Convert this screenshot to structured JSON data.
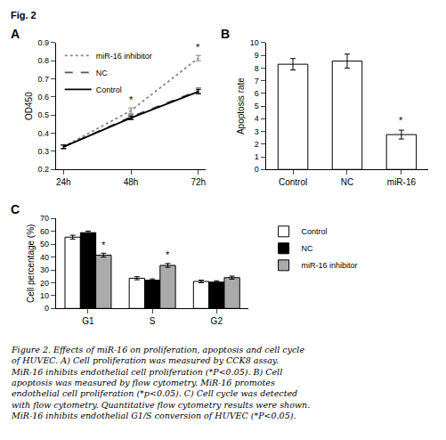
{
  "chart_data": [
    {
      "type": "line",
      "title": "A",
      "y_label": "OD450",
      "categories": [
        "24h",
        "48h",
        "72h"
      ],
      "series": [
        {
          "name": "miR-16 inhibitor",
          "color": "#888888",
          "line_style": "dotted",
          "values": [
            0.325,
            0.525,
            0.815
          ],
          "yerr": [
            0.01,
            0.015,
            0.015
          ]
        },
        {
          "name": "NC",
          "color": "#555555",
          "line_style": "dashed",
          "values": [
            0.325,
            0.49,
            0.635
          ],
          "yerr": [
            0.01,
            0.012,
            0.015
          ]
        },
        {
          "name": "Control",
          "color": "#000000",
          "line_style": "solid",
          "values": [
            0.325,
            0.485,
            0.63
          ],
          "yerr": [
            0.01,
            0.01,
            0.012
          ]
        }
      ],
      "ylim": [
        0.2,
        0.9
      ],
      "yticks": [
        0.2,
        0.3,
        0.4,
        0.5,
        0.6,
        0.7,
        0.8,
        0.9
      ],
      "grid": false,
      "legend": "upper left",
      "annotations": [
        {
          "text": "Fig. 2"
        },
        {
          "category": "48h",
          "y": 0.548,
          "text": "*"
        },
        {
          "category": "72h",
          "y": 0.838,
          "text": "*"
        },
        {
          "text": "Figure 2. Effects of miR-16 on proliferation, apoptosis and cell cycle\nof HUVEC. A) Cell proliferation was measured by CCK8 assay.\nMiR-16 inhibits endothelial cell proliferation (*P<0.05). B) Cell\napoptosis was measured by flow cytometry. MiR-16 promotes\nendothelial cell proliferation (*p<0.05). C) Cell cycle was detected\nwith flow cytometry. Quantitative flow cytometry results were shown.\nMiR-16 inhibits endothelial G1/S conversion of HUVEC (*P<0.05)."
        }
      ]
    },
    {
      "type": "bar",
      "title": "B",
      "y_label": "Apoptosis rate",
      "categories": [
        "Control",
        "NC",
        "miR-16"
      ],
      "values": [
        8.3,
        8.55,
        2.75
      ],
      "yerr": [
        0.45,
        0.55,
        0.35
      ],
      "color": "#ffffff",
      "ylim": [
        0,
        10
      ],
      "yticks": [
        0,
        1,
        2,
        3,
        4,
        5,
        6,
        7,
        8,
        9,
        10
      ],
      "grid": false,
      "annotations": [
        {
          "category": "miR-16",
          "y": 3.35,
          "text": "*"
        }
      ]
    },
    {
      "type": "bar",
      "title": "C",
      "y_label": "Cell percentage (%)",
      "categories": [
        "G1",
        "S",
        "G2"
      ],
      "series": [
        {
          "name": "Control",
          "color": "#ffffff",
          "values": [
            55.5,
            23.5,
            21.0
          ],
          "yerr": [
            1.5,
            1.2,
            1.0
          ]
        },
        {
          "name": "NC",
          "color": "#000000",
          "values": [
            59.0,
            22.0,
            20.5
          ],
          "yerr": [
            1.2,
            1.0,
            1.0
          ]
        },
        {
          "name": "miR-16 inhibitor",
          "color": "#aaaaaa",
          "values": [
            41.5,
            33.5,
            24.0
          ],
          "yerr": [
            1.5,
            1.5,
            1.2
          ]
        }
      ],
      "ylim": [
        0,
        70
      ],
      "yticks": [
        0,
        10,
        20,
        30,
        40,
        50,
        60,
        70
      ],
      "grid": false,
      "legend": "right",
      "annotations": [
        {
          "category": "G1",
          "series": "miR-16 inhibitor",
          "y": 44.2,
          "text": "*"
        },
        {
          "category": "S",
          "series": "miR-16 inhibitor",
          "y": 36.2,
          "text": "*"
        }
      ]
    }
  ]
}
